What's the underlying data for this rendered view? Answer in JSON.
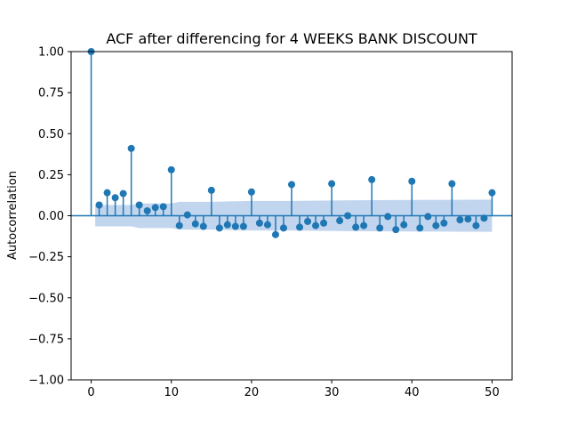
{
  "chart_data": {
    "type": "scatter",
    "style": "stem",
    "title": "ACF after differencing for 4 WEEKS BANK DISCOUNT",
    "xlabel": "",
    "ylabel": "Autocorrelation",
    "xlim": [
      -2.5,
      52.5
    ],
    "ylim": [
      -1.0,
      1.0
    ],
    "xticks": [
      0,
      10,
      20,
      30,
      40,
      50
    ],
    "yticks": [
      -1.0,
      -0.75,
      -0.5,
      -0.25,
      0.0,
      0.25,
      0.5,
      0.75,
      1.0
    ],
    "ytick_labels": [
      "−1.00",
      "−0.75",
      "−0.50",
      "−0.25",
      "0.00",
      "0.25",
      "0.50",
      "0.75",
      "1.00"
    ],
    "grid": false,
    "colors": {
      "stem": "#1f77b4",
      "marker": "#1f77b4",
      "band": "#aec7e8",
      "baseline": "#1f77b4"
    },
    "series": [
      {
        "lags": [
          0,
          1,
          2,
          3,
          4,
          5,
          6,
          7,
          8,
          9,
          10,
          11,
          12,
          13,
          14,
          15,
          16,
          17,
          18,
          19,
          20,
          21,
          22,
          23,
          24,
          25,
          26,
          27,
          28,
          29,
          30,
          31,
          32,
          33,
          34,
          35,
          36,
          37,
          38,
          39,
          40,
          41,
          42,
          43,
          44,
          45,
          46,
          47,
          48,
          49,
          50
        ],
        "values": [
          1.0,
          0.065,
          0.14,
          0.11,
          0.135,
          0.41,
          0.065,
          0.03,
          0.05,
          0.055,
          0.28,
          -0.06,
          0.005,
          -0.05,
          -0.065,
          0.155,
          -0.075,
          -0.055,
          -0.065,
          -0.065,
          0.145,
          -0.045,
          -0.055,
          -0.115,
          -0.075,
          0.19,
          -0.07,
          -0.035,
          -0.06,
          -0.045,
          0.195,
          -0.03,
          0.0,
          -0.07,
          -0.06,
          0.22,
          -0.075,
          -0.005,
          -0.085,
          -0.055,
          0.21,
          -0.075,
          -0.005,
          -0.06,
          -0.045,
          0.195,
          -0.025,
          -0.02,
          -0.06,
          -0.015,
          0.14
        ]
      }
    ],
    "confidence_band": {
      "lags": [
        0.5,
        5,
        6,
        10,
        11,
        15,
        20,
        25,
        30,
        35,
        40,
        45,
        50
      ],
      "upper": [
        0.065,
        0.065,
        0.075,
        0.075,
        0.085,
        0.085,
        0.09,
        0.09,
        0.093,
        0.095,
        0.096,
        0.097,
        0.098
      ],
      "lower": [
        -0.065,
        -0.065,
        -0.075,
        -0.075,
        -0.085,
        -0.085,
        -0.09,
        -0.09,
        -0.093,
        -0.095,
        -0.096,
        -0.097,
        -0.098
      ]
    }
  }
}
